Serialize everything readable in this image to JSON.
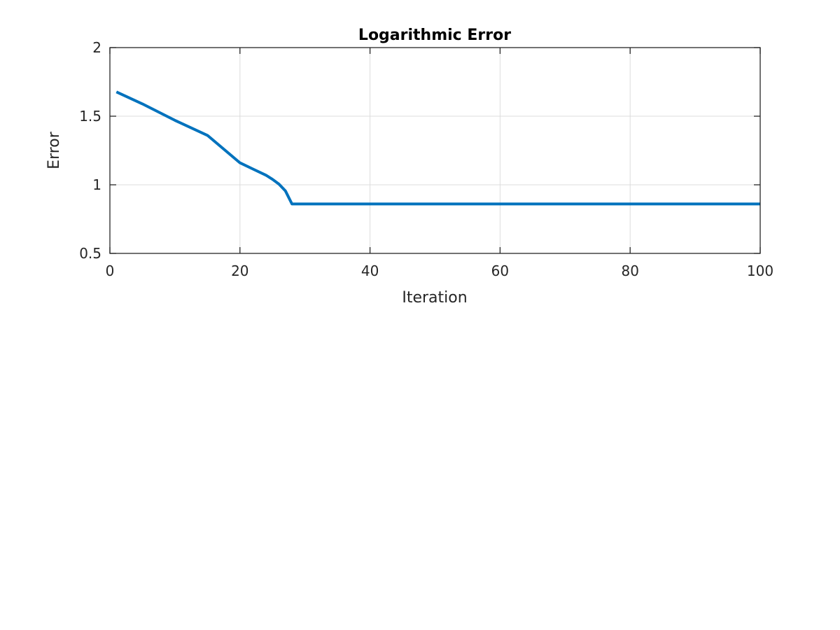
{
  "chart_data": {
    "type": "line",
    "title": "Logarithmic Error",
    "xlabel": "Iteration",
    "ylabel": "Error",
    "xlim": [
      0,
      100
    ],
    "ylim": [
      0.5,
      2
    ],
    "xticks": [
      0,
      20,
      40,
      60,
      80,
      100
    ],
    "yticks": [
      0.5,
      1,
      1.5,
      2
    ],
    "xtick_labels": [
      "0",
      "20",
      "40",
      "60",
      "80",
      "100"
    ],
    "ytick_labels": [
      "0.5",
      "1",
      "1.5",
      "2"
    ],
    "grid": true,
    "box": true,
    "series": [
      {
        "color": "#0072bd",
        "x": [
          1,
          5,
          10,
          15,
          20,
          22,
          24,
          25,
          26,
          27,
          28,
          30,
          40,
          50,
          60,
          70,
          80,
          90,
          100
        ],
        "y": [
          1.677,
          1.59,
          1.47,
          1.36,
          1.16,
          1.115,
          1.07,
          1.04,
          1.005,
          0.955,
          0.86,
          0.86,
          0.86,
          0.86,
          0.86,
          0.86,
          0.86,
          0.86,
          0.86
        ]
      }
    ]
  }
}
